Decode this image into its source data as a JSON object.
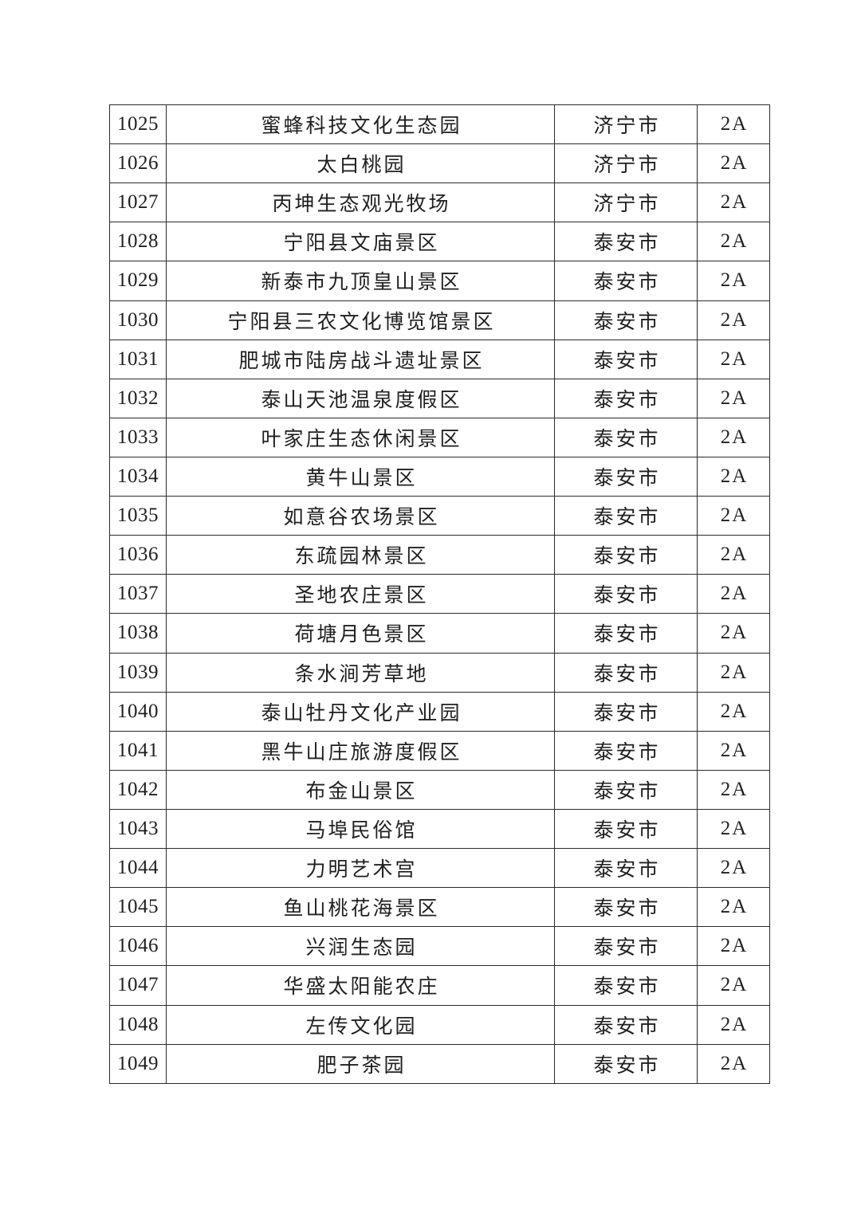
{
  "table": {
    "rows": [
      {
        "number": "1025",
        "name": "蜜蜂科技文化生态园",
        "city": "济宁市",
        "rating": "2A"
      },
      {
        "number": "1026",
        "name": "太白桃园",
        "city": "济宁市",
        "rating": "2A"
      },
      {
        "number": "1027",
        "name": "丙坤生态观光牧场",
        "city": "济宁市",
        "rating": "2A"
      },
      {
        "number": "1028",
        "name": "宁阳县文庙景区",
        "city": "泰安市",
        "rating": "2A"
      },
      {
        "number": "1029",
        "name": "新泰市九顶皇山景区",
        "city": "泰安市",
        "rating": "2A"
      },
      {
        "number": "1030",
        "name": "宁阳县三农文化博览馆景区",
        "city": "泰安市",
        "rating": "2A"
      },
      {
        "number": "1031",
        "name": "肥城市陆房战斗遗址景区",
        "city": "泰安市",
        "rating": "2A"
      },
      {
        "number": "1032",
        "name": "泰山天池温泉度假区",
        "city": "泰安市",
        "rating": "2A"
      },
      {
        "number": "1033",
        "name": "叶家庄生态休闲景区",
        "city": "泰安市",
        "rating": "2A"
      },
      {
        "number": "1034",
        "name": "黄牛山景区",
        "city": "泰安市",
        "rating": "2A"
      },
      {
        "number": "1035",
        "name": "如意谷农场景区",
        "city": "泰安市",
        "rating": "2A"
      },
      {
        "number": "1036",
        "name": "东疏园林景区",
        "city": "泰安市",
        "rating": "2A"
      },
      {
        "number": "1037",
        "name": "圣地农庄景区",
        "city": "泰安市",
        "rating": "2A"
      },
      {
        "number": "1038",
        "name": "荷塘月色景区",
        "city": "泰安市",
        "rating": "2A"
      },
      {
        "number": "1039",
        "name": "条水涧芳草地",
        "city": "泰安市",
        "rating": "2A"
      },
      {
        "number": "1040",
        "name": "泰山牡丹文化产业园",
        "city": "泰安市",
        "rating": "2A"
      },
      {
        "number": "1041",
        "name": "黑牛山庄旅游度假区",
        "city": "泰安市",
        "rating": "2A"
      },
      {
        "number": "1042",
        "name": "布金山景区",
        "city": "泰安市",
        "rating": "2A"
      },
      {
        "number": "1043",
        "name": "马埠民俗馆",
        "city": "泰安市",
        "rating": "2A"
      },
      {
        "number": "1044",
        "name": "力明艺术宫",
        "city": "泰安市",
        "rating": "2A"
      },
      {
        "number": "1045",
        "name": "鱼山桃花海景区",
        "city": "泰安市",
        "rating": "2A"
      },
      {
        "number": "1046",
        "name": "兴润生态园",
        "city": "泰安市",
        "rating": "2A"
      },
      {
        "number": "1047",
        "name": "华盛太阳能农庄",
        "city": "泰安市",
        "rating": "2A"
      },
      {
        "number": "1048",
        "name": "左传文化园",
        "city": "泰安市",
        "rating": "2A"
      },
      {
        "number": "1049",
        "name": "肥子茶园",
        "city": "泰安市",
        "rating": "2A"
      }
    ]
  },
  "colors": {
    "background": "#ffffff",
    "border": "#2a2a2a",
    "text": "#1f1f1f"
  }
}
